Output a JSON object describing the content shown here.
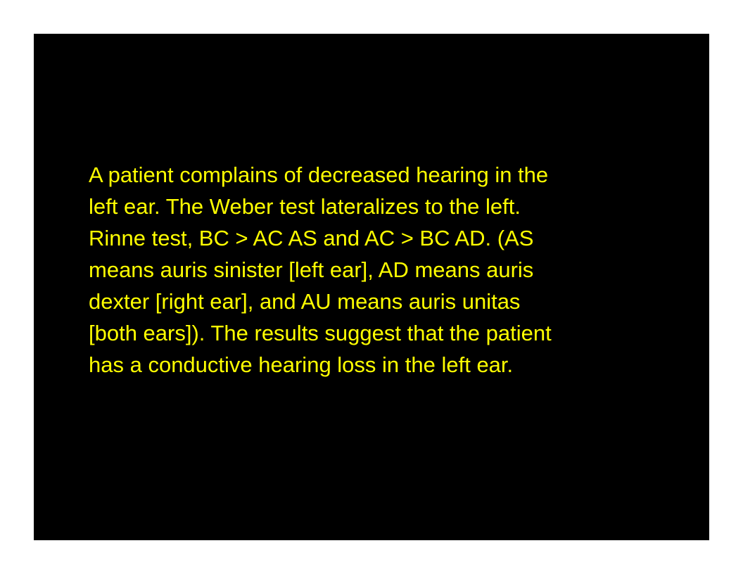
{
  "slide": {
    "text_color": "#ffff00",
    "background_color": "#000000",
    "lines": [
      "A patient complains of decreased hearing in the",
      "left ear. The Weber test lateralizes to the left.",
      "Rinne test, BC > AC AS and AC > BC AD. (AS",
      "means auris sinister [left ear], AD means auris",
      "dexter [right ear], and AU means auris unitas",
      "[both ears]). The results suggest that the patient",
      "has a conductive hearing loss in the left ear."
    ]
  }
}
